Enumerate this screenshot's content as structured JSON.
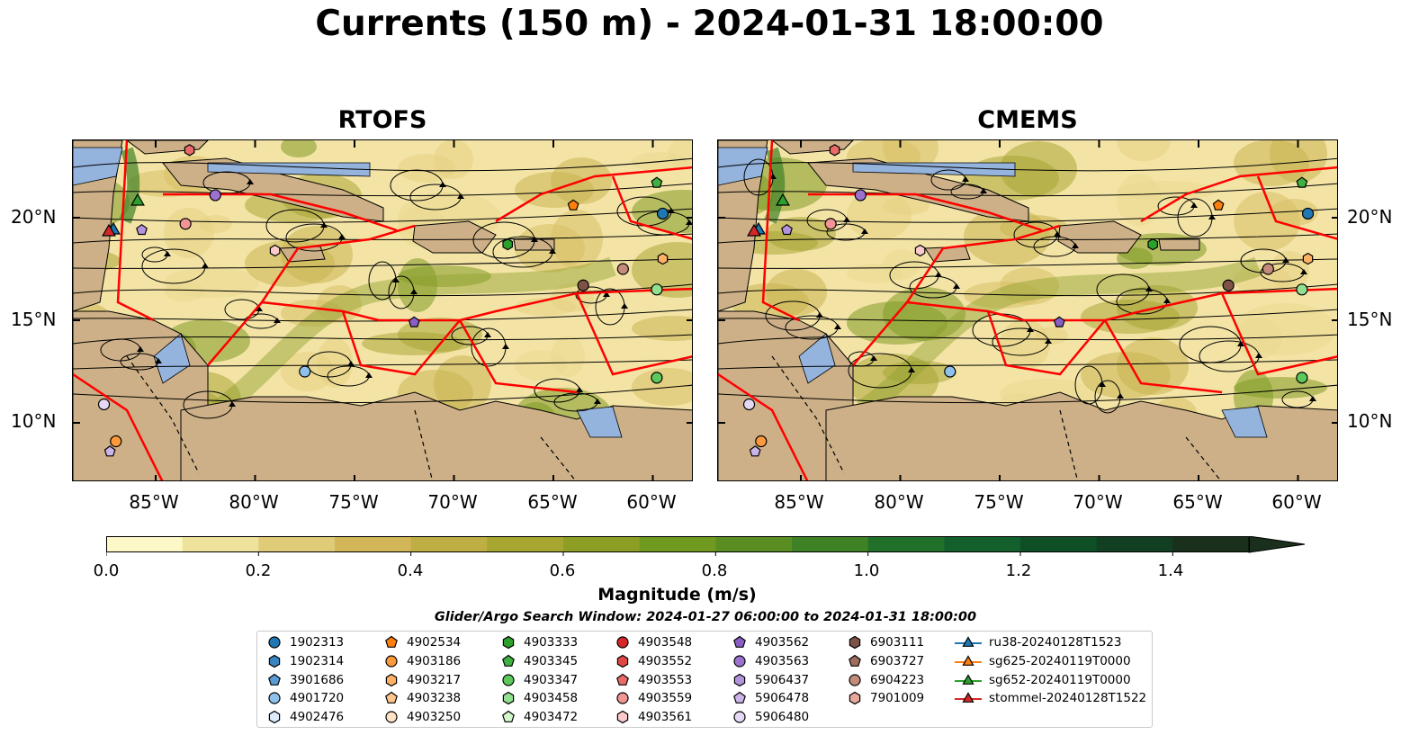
{
  "title": "Currents (150 m) - 2024-01-31 18:00:00",
  "panels": [
    {
      "title": "RTOFS"
    },
    {
      "title": "CMEMS"
    }
  ],
  "axes": {
    "lat_labels": [
      "20°N",
      "15°N",
      "10°N"
    ],
    "lon_labels": [
      "85°W",
      "80°W",
      "75°W",
      "70°W",
      "65°W",
      "60°W"
    ]
  },
  "colors": {
    "land": "#cdb087",
    "water": "#94b3dd",
    "boundaries": "#ff0000",
    "streamlines": "#000000"
  },
  "colorbar": {
    "label": "Magnitude (m/s)",
    "ticks": [
      "0.0",
      "0.2",
      "0.4",
      "0.6",
      "0.8",
      "1.0",
      "1.2",
      "1.4"
    ],
    "range": [
      0.0,
      1.5
    ],
    "extend": "max",
    "colors": [
      "#fdf8c7",
      "#efe29c",
      "#e0cb78",
      "#d2b657",
      "#bfae43",
      "#a6a631",
      "#8c9f24",
      "#6f9a1f",
      "#5a8e22",
      "#3f8125",
      "#21702a",
      "#13602d",
      "#0e4f26",
      "#123f21",
      "#1a301d"
    ]
  },
  "search_window": "Glider/Argo Search Window: 2024-01-27 06:00:00 to 2024-01-31 18:00:00",
  "legend": {
    "columns": [
      [
        {
          "label": "1902313",
          "marker": "circle",
          "color": "#1f77b4"
        },
        {
          "label": "1902314",
          "marker": "hexagon",
          "color": "#3a85c0"
        },
        {
          "label": "3901686",
          "marker": "pentagon",
          "color": "#5a9bd5"
        },
        {
          "label": "4901720",
          "marker": "circle",
          "color": "#8ec1ec"
        },
        {
          "label": "4902476",
          "marker": "hexagon",
          "color": "#dcecfa"
        }
      ],
      [
        {
          "label": "4902534",
          "marker": "pentagon",
          "color": "#ff7f0e"
        },
        {
          "label": "4903186",
          "marker": "circle",
          "color": "#ff9a3c"
        },
        {
          "label": "4903217",
          "marker": "hexagon",
          "color": "#ffb063"
        },
        {
          "label": "4903238",
          "marker": "pentagon",
          "color": "#ffc68d"
        },
        {
          "label": "4903250",
          "marker": "circle",
          "color": "#ffe3c4"
        }
      ],
      [
        {
          "label": "4903333",
          "marker": "hexagon",
          "color": "#2ca02c"
        },
        {
          "label": "4903345",
          "marker": "pentagon",
          "color": "#40b040"
        },
        {
          "label": "4903347",
          "marker": "circle",
          "color": "#5dc95d"
        },
        {
          "label": "4903458",
          "marker": "hexagon",
          "color": "#90e090"
        },
        {
          "label": "4903472",
          "marker": "pentagon",
          "color": "#d4f7cc"
        }
      ],
      [
        {
          "label": "4903548",
          "marker": "circle",
          "color": "#d62728"
        },
        {
          "label": "4903552",
          "marker": "hexagon",
          "color": "#e04848"
        },
        {
          "label": "4903553",
          "marker": "pentagon",
          "color": "#ea6a6a"
        },
        {
          "label": "4903559",
          "marker": "circle",
          "color": "#f29595"
        },
        {
          "label": "4903561",
          "marker": "hexagon",
          "color": "#fbcaca"
        }
      ],
      [
        {
          "label": "4903562",
          "marker": "pentagon",
          "color": "#8a5dc4"
        },
        {
          "label": "4903563",
          "marker": "circle",
          "color": "#9b72cf"
        },
        {
          "label": "5906437",
          "marker": "hexagon",
          "color": "#b394dc"
        },
        {
          "label": "5906478",
          "marker": "pentagon",
          "color": "#cbb5e8"
        },
        {
          "label": "5906480",
          "marker": "circle",
          "color": "#e5d8f4"
        }
      ],
      [
        {
          "label": "6903111",
          "marker": "hexagon",
          "color": "#7f5247"
        },
        {
          "label": "6903727",
          "marker": "pentagon",
          "color": "#a06d5d"
        },
        {
          "label": "6904223",
          "marker": "circle",
          "color": "#c48b7c"
        },
        {
          "label": "7901009",
          "marker": "hexagon",
          "color": "#e7a89c"
        }
      ],
      [
        {
          "label": "ru38-20240128T1523",
          "marker": "triangle",
          "color": "#1f77b4"
        },
        {
          "label": "sg625-20240119T0000",
          "marker": "triangle",
          "color": "#ff7f0e"
        },
        {
          "label": "sg652-20240119T0000",
          "marker": "triangle",
          "color": "#2ca02c"
        },
        {
          "label": "stommel-20240128T1522",
          "marker": "triangle",
          "color": "#d62728"
        }
      ]
    ]
  }
}
